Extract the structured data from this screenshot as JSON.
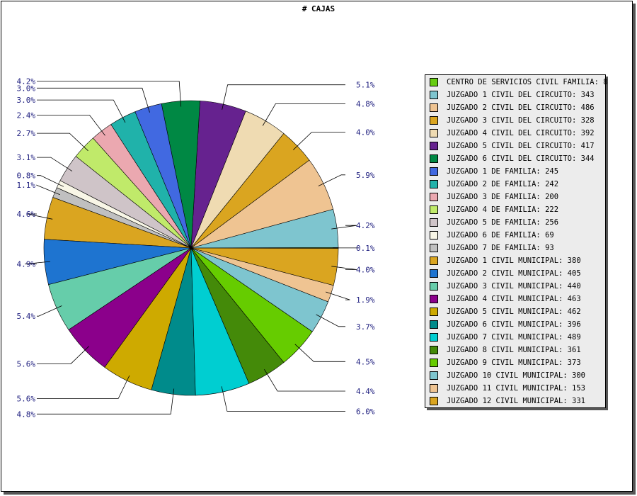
{
  "chart_data": {
    "type": "pie",
    "title": "# CAJAS",
    "legend_position": "right",
    "slices": [
      {
        "label": "CENTRO DE SERVICIOS CIVIL FAMILIA: 8",
        "value": 8,
        "percent": "0.1%",
        "color": "#66cc11"
      },
      {
        "label": "JUZGADO 1 CIVIL DEL CIRCUITO: 343",
        "value": 343,
        "percent": "4.2%",
        "color": "#7ec5cf"
      },
      {
        "label": "JUZGADO 2 CIVIL DEL CIRCUITO: 486",
        "value": 486,
        "percent": "5.9%",
        "color": "#efc492"
      },
      {
        "label": "JUZGADO 3 CIVIL DEL CIRCUITO: 328",
        "value": 328,
        "percent": "4.0%",
        "color": "#daa520"
      },
      {
        "label": "JUZGADO 4 CIVIL DEL CIRCUITO: 392",
        "value": 392,
        "percent": "4.8%",
        "color": "#efdbb2"
      },
      {
        "label": "JUZGADO 5 CIVIL DEL CIRCUITO: 417",
        "value": 417,
        "percent": "5.1%",
        "color": "#66228f"
      },
      {
        "label": "JUZGADO 6 CIVIL DEL CIRCUITO: 344",
        "value": 344,
        "percent": "4.2%",
        "color": "#008844"
      },
      {
        "label": "JUZGADO 1 DE FAMILIA: 245",
        "value": 245,
        "percent": "3.0%",
        "color": "#4169e1"
      },
      {
        "label": "JUZGADO 2 DE FAMILIA: 242",
        "value": 242,
        "percent": "3.0%",
        "color": "#20b2aa"
      },
      {
        "label": "JUZGADO 3 DE FAMILIA: 200",
        "value": 200,
        "percent": "2.4%",
        "color": "#eba8b0"
      },
      {
        "label": "JUZGADO 4 DE FAMILIA: 222",
        "value": 222,
        "percent": "2.7%",
        "color": "#c0ea6a"
      },
      {
        "label": "JUZGADO 5 DE FAMILIA: 256",
        "value": 256,
        "percent": "3.1%",
        "color": "#cfc4c8"
      },
      {
        "label": "JUZGADO 6 DE FAMILIA: 69",
        "value": 69,
        "percent": "0.8%",
        "color": "#f8f6e6"
      },
      {
        "label": "JUZGADO 7 DE FAMILIA: 93",
        "value": 93,
        "percent": "1.1%",
        "color": "#c0c0c0"
      },
      {
        "label": "JUZGADO 1 CIVIL MUNICIPAL: 380",
        "value": 380,
        "percent": "4.6%",
        "color": "#daa520"
      },
      {
        "label": "JUZGADO 2 CIVIL MUNICIPAL: 405",
        "value": 405,
        "percent": "4.9%",
        "color": "#1e74d0"
      },
      {
        "label": "JUZGADO 3 CIVIL MUNICIPAL: 440",
        "value": 440,
        "percent": "5.4%",
        "color": "#66cdaa"
      },
      {
        "label": "JUZGADO 4 CIVIL MUNICIPAL: 463",
        "value": 463,
        "percent": "5.6%",
        "color": "#8b008b"
      },
      {
        "label": "JUZGADO 5 CIVIL MUNICIPAL: 462",
        "value": 462,
        "percent": "5.6%",
        "color": "#ceaa00"
      },
      {
        "label": "JUZGADO 6 CIVIL MUNICIPAL: 396",
        "value": 396,
        "percent": "4.8%",
        "color": "#008b8b"
      },
      {
        "label": "JUZGADO 7 CIVIL MUNICIPAL: 489",
        "value": 489,
        "percent": "6.0%",
        "color": "#00ced1"
      },
      {
        "label": "JUZGADO 8 CIVIL MUNICIPAL: 361",
        "value": 361,
        "percent": "4.4%",
        "color": "#448a09"
      },
      {
        "label": "JUZGADO 9 CIVIL MUNICIPAL: 373",
        "value": 373,
        "percent": "4.5%",
        "color": "#66cc00"
      },
      {
        "label": "JUZGADO 10 CIVIL MUNICIPAL: 300",
        "value": 300,
        "percent": "3.7%",
        "color": "#7ec5cf"
      },
      {
        "label": "JUZGADO 11 CIVIL MUNICIPAL: 153",
        "value": 153,
        "percent": "1.9%",
        "color": "#efc492"
      },
      {
        "label": "JUZGADO 12 CIVIL MUNICIPAL: 331",
        "value": 331,
        "percent": "4.0%",
        "color": "#daa520"
      }
    ]
  }
}
